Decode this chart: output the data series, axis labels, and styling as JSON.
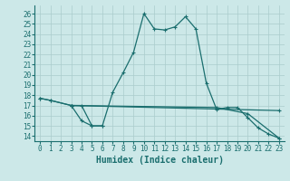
{
  "bg_color": "#cce8e8",
  "grid_color": "#aacccc",
  "line_color": "#1a6e6e",
  "xlabel": "Humidex (Indice chaleur)",
  "xlim": [
    -0.5,
    23.5
  ],
  "ylim": [
    13.5,
    26.8
  ],
  "yticks": [
    14,
    15,
    16,
    17,
    18,
    19,
    20,
    21,
    22,
    23,
    24,
    25,
    26
  ],
  "xticks": [
    0,
    1,
    2,
    3,
    4,
    5,
    6,
    7,
    8,
    9,
    10,
    11,
    12,
    13,
    14,
    15,
    16,
    17,
    18,
    19,
    20,
    21,
    22,
    23
  ],
  "curve1_x": [
    0,
    1,
    3,
    4,
    5,
    6,
    7,
    8,
    9,
    10,
    11,
    12,
    13,
    14,
    15,
    16,
    17,
    18,
    19,
    20,
    21,
    22,
    23
  ],
  "curve1_y": [
    17.7,
    17.5,
    17.0,
    15.5,
    15.0,
    15.0,
    18.3,
    20.2,
    22.2,
    26.0,
    24.5,
    24.4,
    24.7,
    25.7,
    24.5,
    19.2,
    16.6,
    16.8,
    16.8,
    15.8,
    14.8,
    14.2,
    13.8
  ],
  "curve2_x": [
    0,
    1,
    3,
    4,
    5,
    6
  ],
  "curve2_y": [
    17.7,
    17.5,
    17.0,
    17.0,
    15.0,
    15.0
  ],
  "line3_x": [
    3,
    23
  ],
  "line3_y": [
    17.0,
    16.5
  ],
  "line4_x": [
    3,
    17,
    20,
    23
  ],
  "line4_y": [
    17.0,
    16.8,
    16.2,
    13.8
  ]
}
